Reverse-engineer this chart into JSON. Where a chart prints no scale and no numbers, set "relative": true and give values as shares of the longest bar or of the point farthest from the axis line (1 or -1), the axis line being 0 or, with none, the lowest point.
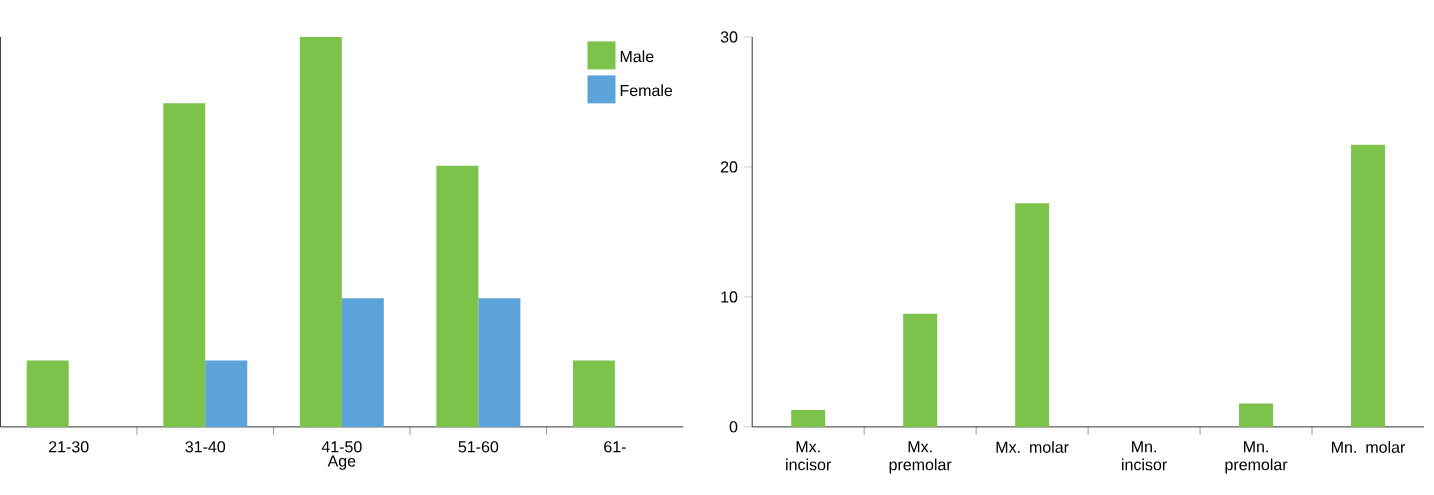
{
  "chart_data": [
    {
      "type": "bar",
      "xlabel": "Age",
      "categories": [
        "21-30",
        "31-40",
        "41-50",
        "51-60",
        "61-"
      ],
      "relative": true,
      "legend": "top right",
      "series": [
        {
          "name": "Male",
          "color": "#7dc24b",
          "values": [
            0.17,
            0.83,
            1,
            0.67,
            0.17
          ]
        },
        {
          "name": "Female",
          "color": "#5ba3d9",
          "values": [
            0,
            0.17,
            0.33,
            0.33,
            0
          ]
        }
      ]
    },
    {
      "type": "bar",
      "categories": [
        "Mx. incisor",
        "Mx. premolar",
        "Mx. molar",
        "Mn. incisor",
        "Mn. premolar",
        "Mn. molar"
      ],
      "color": "#7dc24b",
      "values": [
        1.3,
        8.7,
        17.2,
        0,
        1.8,
        21.7
      ],
      "ylim": [
        0,
        30
      ],
      "yticks": [
        0,
        10,
        20,
        30
      ]
    }
  ]
}
